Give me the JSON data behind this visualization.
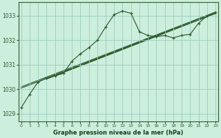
{
  "bg_color": "#cceedd",
  "grid_color": "#99ccbb",
  "line_color": "#2d5a2d",
  "title": "Graphe pression niveau de la mer (hPa)",
  "xlim": [
    -0.3,
    23.3
  ],
  "ylim": [
    1028.7,
    1033.55
  ],
  "yticks": [
    1029,
    1030,
    1031,
    1032,
    1033
  ],
  "xticks": [
    0,
    1,
    2,
    3,
    4,
    5,
    6,
    7,
    8,
    9,
    10,
    11,
    12,
    13,
    14,
    15,
    16,
    17,
    18,
    19,
    20,
    21,
    22,
    23
  ],
  "main_x": [
    0,
    1,
    2,
    3,
    4,
    5,
    6,
    7,
    8,
    9,
    10,
    11,
    12,
    13,
    14,
    15,
    16,
    17,
    18,
    19,
    20,
    21,
    22,
    23
  ],
  "main_y": [
    1029.25,
    1029.8,
    1030.3,
    1030.45,
    1030.55,
    1030.65,
    1031.15,
    1031.45,
    1031.7,
    1032.0,
    1032.55,
    1033.05,
    1033.2,
    1033.1,
    1032.35,
    1032.2,
    1032.15,
    1032.2,
    1032.1,
    1032.2,
    1032.25,
    1032.7,
    1033.0,
    1033.15
  ],
  "straight_lines": [
    {
      "x": [
        0,
        23
      ],
      "y": [
        1030.1,
        1033.15
      ]
    },
    {
      "x": [
        0,
        23
      ],
      "y": [
        1030.05,
        1033.1
      ]
    },
    {
      "x": [
        3,
        23
      ],
      "y": [
        1030.45,
        1033.15
      ]
    },
    {
      "x": [
        3,
        23
      ],
      "y": [
        1030.42,
        1033.1
      ]
    }
  ]
}
